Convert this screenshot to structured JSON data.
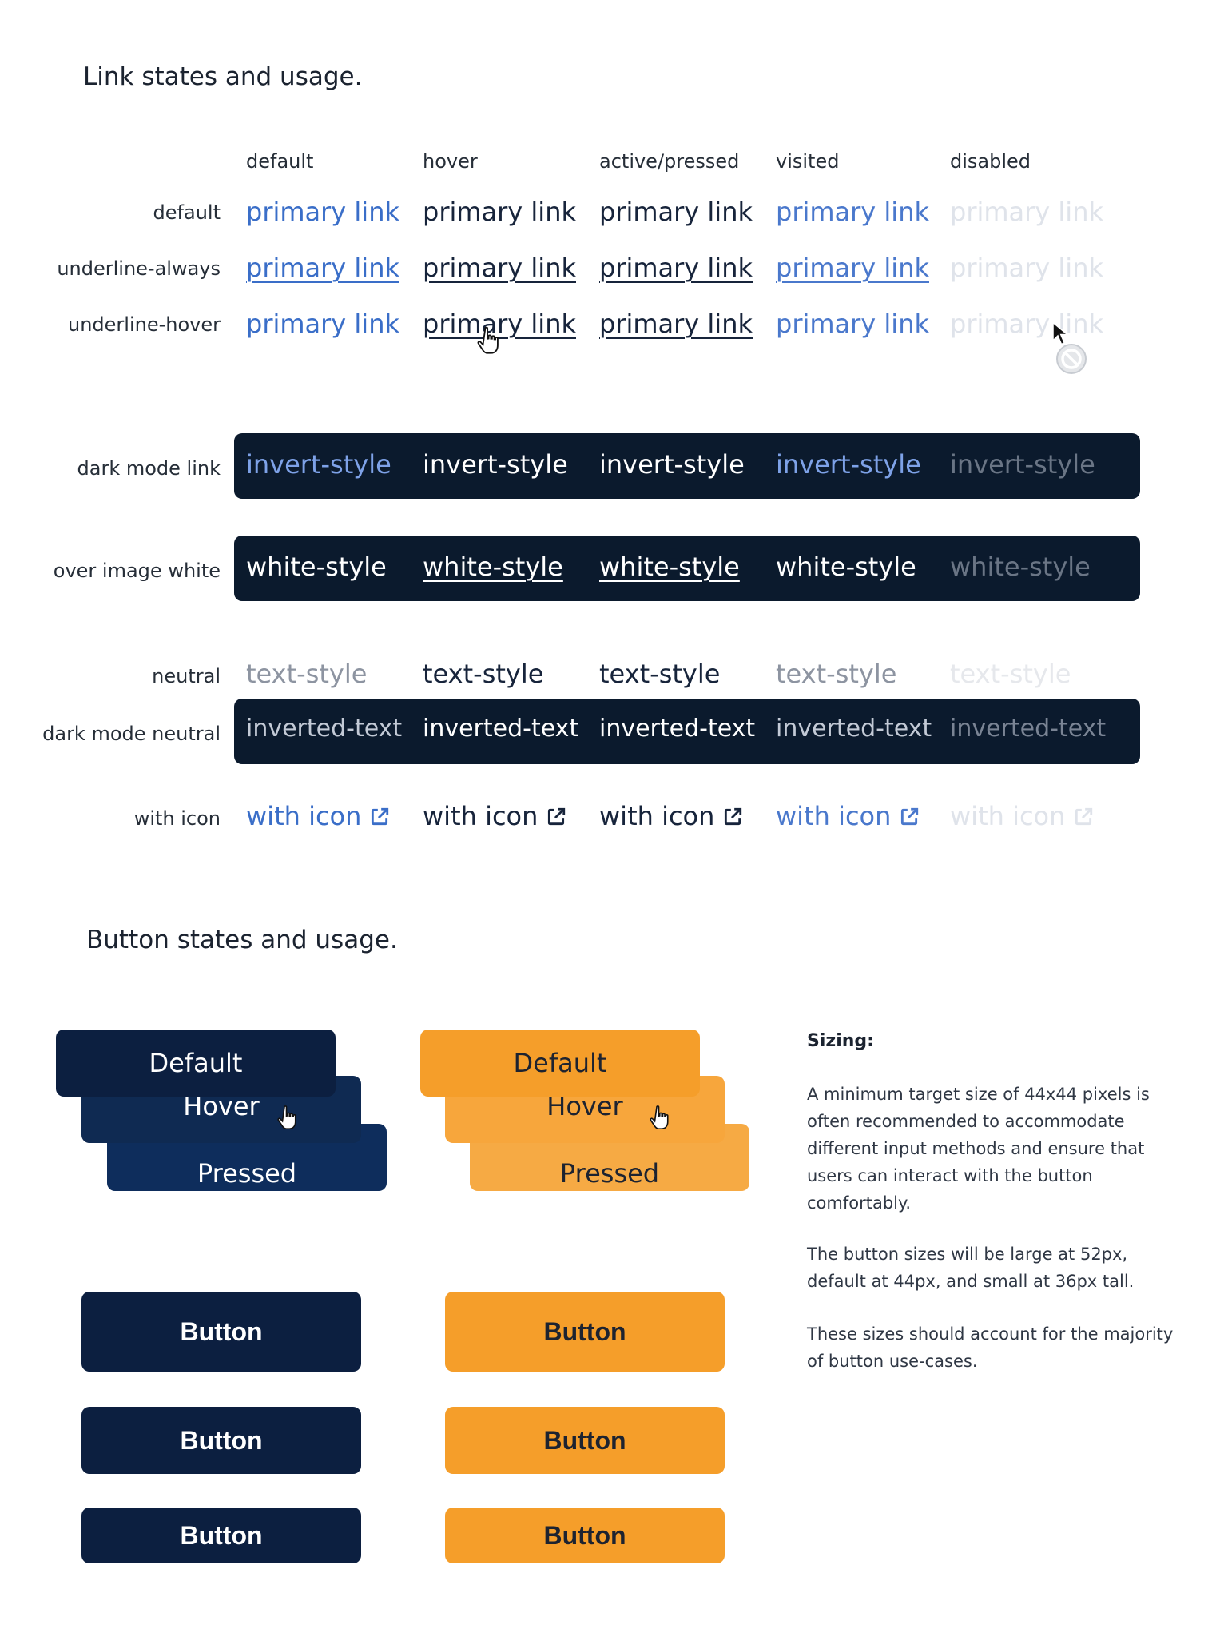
{
  "links_section": {
    "title": "Link states and usage.",
    "columns": [
      "default",
      "hover",
      "active/pressed",
      "visited",
      "disabled"
    ],
    "rows": {
      "default": {
        "label": "default",
        "text": "primary link"
      },
      "underline_always": {
        "label": "underline-always",
        "text": "primary link"
      },
      "underline_hover": {
        "label": "underline-hover",
        "text": "primary link"
      },
      "dark_mode_link": {
        "label": "dark mode link",
        "text": "invert-style"
      },
      "over_image_white": {
        "label": "over image white",
        "text": "white-style"
      },
      "neutral": {
        "label": "neutral",
        "text": "text-style"
      },
      "dark_mode_neutral": {
        "label": "dark mode neutral",
        "text": "inverted-text"
      },
      "with_icon": {
        "label": "with icon",
        "text": "with icon"
      }
    }
  },
  "buttons_section": {
    "title": "Button states and usage.",
    "navy_states": {
      "default": "Default",
      "hover": "Hover",
      "pressed": "Pressed"
    },
    "orange_states": {
      "default": "Default",
      "hover": "Hover",
      "pressed": "Pressed"
    },
    "button_label": "Button"
  },
  "sizing_note": {
    "title": "Sizing:",
    "paragraphs": [
      "A minimum target size of 44x44 pixels is often recommended to accommodate different input methods and ensure that users can interact with the button comfortably.",
      "The button sizes will be large at 52px, default at 44px, and small at 36px tall.",
      "These sizes should account for the majority of button use-cases."
    ]
  },
  "colors": {
    "navy": "#0c1f40",
    "orange": "#f59e2a",
    "link_blue": "#3a6ec8",
    "dark_bar": "#0b1a2d"
  },
  "icons": [
    "external-link-icon",
    "hand-pointer-icon",
    "arrow-pointer-icon",
    "not-allowed-icon"
  ]
}
